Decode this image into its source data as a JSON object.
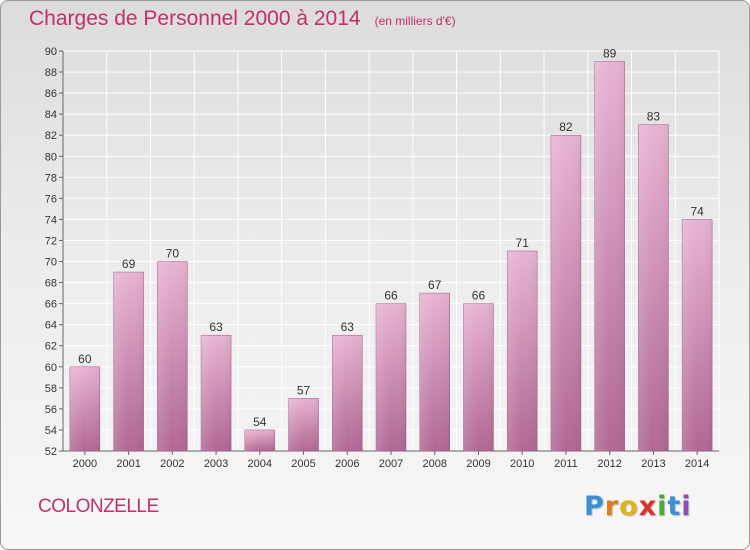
{
  "page": {
    "title": "Charges de Personnel 2000 à 2014",
    "subtitle": "(en milliers d'€)",
    "commune": "COLONZELLE",
    "logo_letters": [
      "P",
      "r",
      "o",
      "x",
      "i",
      "t",
      "i"
    ],
    "logo_colors": [
      "#3b8fd4",
      "#e07a1f",
      "#e0b21f",
      "#d8342e",
      "#4caa3a",
      "#3b8fd4",
      "#8a4fb8"
    ]
  },
  "colors": {
    "title": "#c0306a",
    "bar_top": "#e8b3d3",
    "bar_bottom": "#b06893",
    "grid": "#ffffff"
  },
  "chart_data": {
    "type": "bar",
    "title": "Charges de Personnel 2000 à 2014",
    "ylabel": "(en milliers d'€)",
    "xlabel": "",
    "categories": [
      "2000",
      "2001",
      "2002",
      "2003",
      "2004",
      "2005",
      "2006",
      "2007",
      "2008",
      "2009",
      "2010",
      "2011",
      "2012",
      "2013",
      "2014"
    ],
    "values": [
      60,
      69,
      70,
      63,
      54,
      57,
      63,
      66,
      67,
      66,
      71,
      82,
      89,
      83,
      74
    ],
    "ylim": [
      52,
      90
    ],
    "yticks": [
      52,
      54,
      56,
      58,
      60,
      62,
      64,
      66,
      68,
      70,
      72,
      74,
      76,
      78,
      80,
      82,
      84,
      86,
      88,
      90
    ],
    "grid": true,
    "legend": "none"
  }
}
